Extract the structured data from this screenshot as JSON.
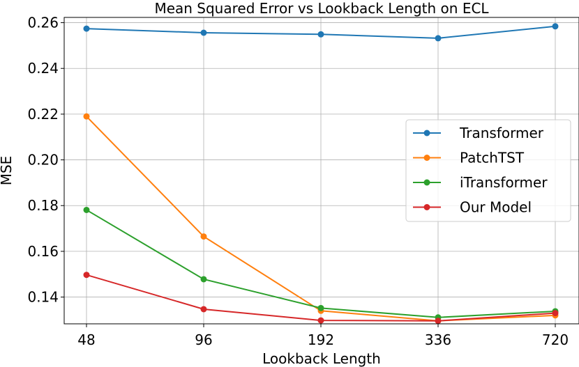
{
  "chart_data": {
    "type": "line",
    "title": "Mean Squared Error vs Lookback Length on ECL",
    "xlabel": "Lookback Length",
    "ylabel": "MSE",
    "categories": [
      "48",
      "96",
      "192",
      "336",
      "720"
    ],
    "yticks": [
      "0.14",
      "0.16",
      "0.18",
      "0.20",
      "0.22",
      "0.24",
      "0.26"
    ],
    "ylim": [
      0.1283,
      0.2623
    ],
    "grid": true,
    "legend_position": "center-right",
    "series": [
      {
        "name": "Transformer",
        "color": "#1f77b4",
        "values": [
          0.2574,
          0.2556,
          0.2549,
          0.2532,
          0.2584
        ]
      },
      {
        "name": "PatchTST",
        "color": "#ff7f0e",
        "values": [
          0.219,
          0.1665,
          0.134,
          0.1296,
          0.132
        ]
      },
      {
        "name": "iTransformer",
        "color": "#2ca02c",
        "values": [
          0.1781,
          0.1478,
          0.1352,
          0.1311,
          0.1338
        ]
      },
      {
        "name": "Our Model",
        "color": "#d62728",
        "values": [
          0.1497,
          0.1347,
          0.1298,
          0.1296,
          0.133
        ]
      }
    ]
  }
}
